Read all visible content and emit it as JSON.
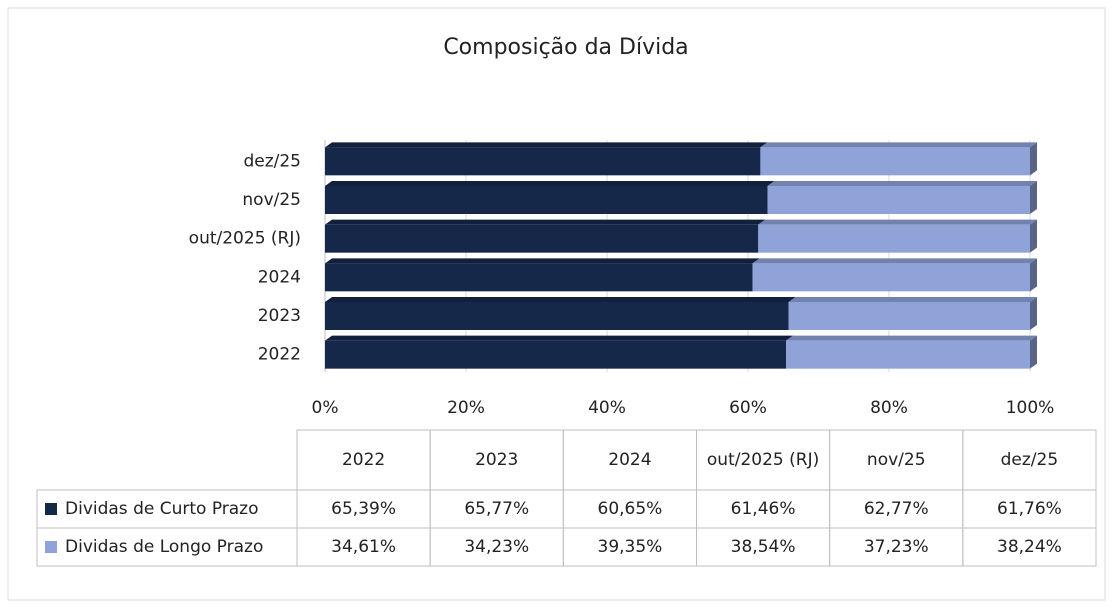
{
  "chart_data": {
    "type": "bar",
    "orientation": "horizontal",
    "stacked": true,
    "title": "Composição da Dívida",
    "categories": [
      "2022",
      "2023",
      "2024",
      "out/2025 (RJ)",
      "nov/25",
      "dez/25"
    ],
    "series": [
      {
        "name": "Dividas de Curto Prazo",
        "color": "#16284a",
        "values": [
          65.39,
          65.77,
          60.65,
          61.46,
          62.77,
          61.76
        ],
        "value_labels": [
          "65,39%",
          "65,77%",
          "60,65%",
          "61,46%",
          "62,77%",
          "61,76%"
        ]
      },
      {
        "name": "Dividas de Longo Prazo",
        "color": "#8fa3d9",
        "values": [
          34.61,
          34.23,
          39.35,
          38.54,
          37.23,
          38.24
        ],
        "value_labels": [
          "34,61%",
          "34,23%",
          "39,35%",
          "38,54%",
          "37,23%",
          "38,24%"
        ]
      }
    ],
    "xlim": [
      0,
      100
    ],
    "xticks": [
      {
        "value": 0,
        "label": "0%"
      },
      {
        "value": 20,
        "label": "20%"
      },
      {
        "value": 40,
        "label": "40%"
      },
      {
        "value": 60,
        "label": "60%"
      },
      {
        "value": 80,
        "label": "80%"
      },
      {
        "value": 100,
        "label": "100%"
      }
    ],
    "grid": true
  }
}
